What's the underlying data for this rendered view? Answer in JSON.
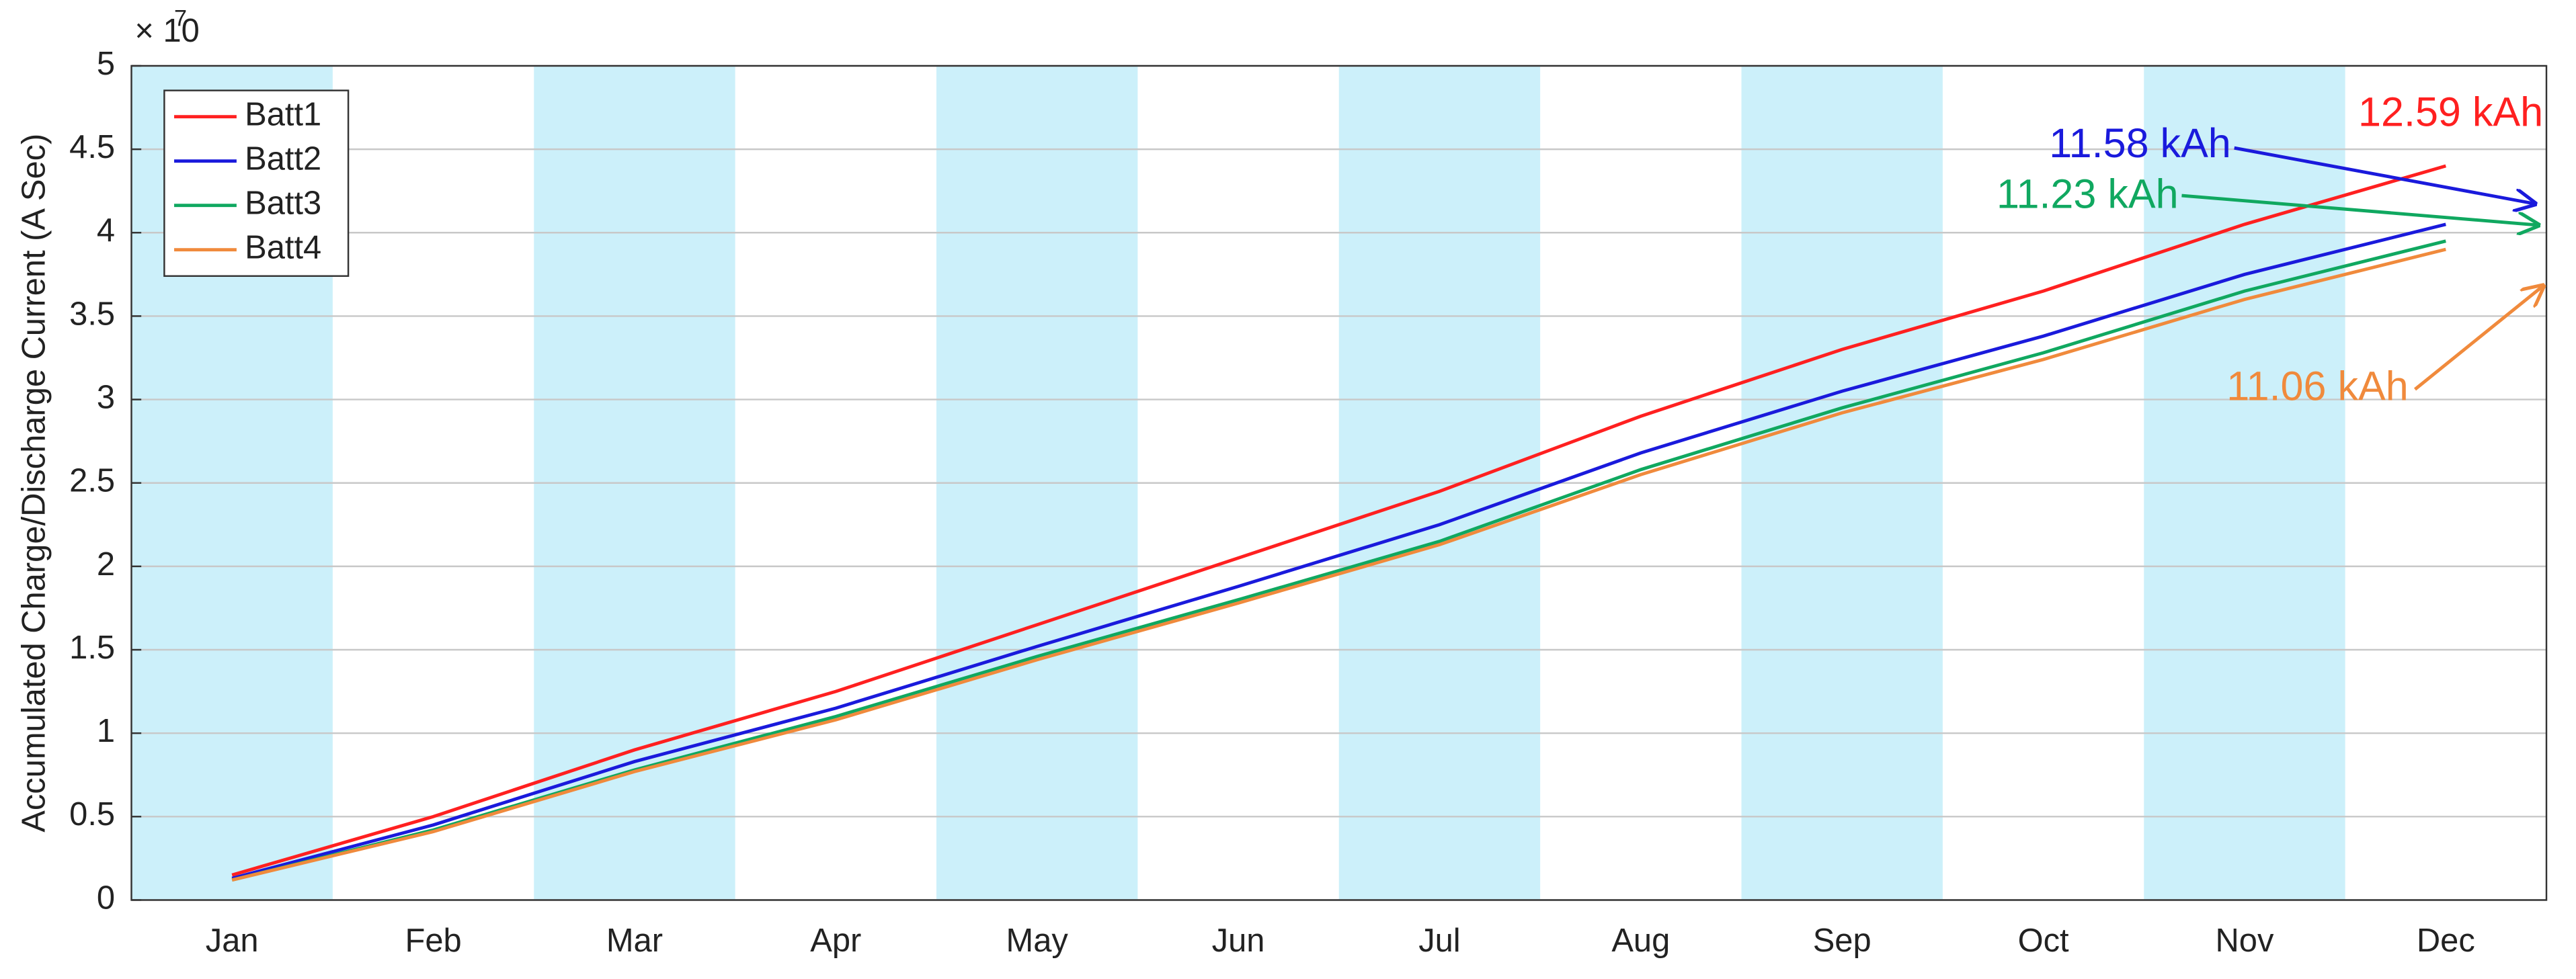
{
  "chart_data": {
    "type": "line",
    "y_label": "Accumulated Charge/Discharge Current (A Sec)",
    "y_scale_base": "× 10",
    "y_scale_exponent": "7",
    "categories": [
      "Jan",
      "Feb",
      "Mar",
      "Apr",
      "May",
      "Jun",
      "Jul",
      "Aug",
      "Sep",
      "Oct",
      "Nov",
      "Dec"
    ],
    "series": [
      {
        "name": "Batt1",
        "color": "#ff2020",
        "values": [
          0.15,
          0.5,
          0.9,
          1.25,
          1.65,
          2.05,
          2.45,
          2.9,
          3.3,
          3.65,
          4.05,
          4.4
        ]
      },
      {
        "name": "Batt2",
        "color": "#1a1adc",
        "values": [
          0.13,
          0.45,
          0.83,
          1.15,
          1.52,
          1.88,
          2.25,
          2.68,
          3.05,
          3.38,
          3.75,
          4.05
        ]
      },
      {
        "name": "Batt3",
        "color": "#10a860",
        "values": [
          0.12,
          0.42,
          0.78,
          1.1,
          1.46,
          1.8,
          2.15,
          2.58,
          2.95,
          3.28,
          3.65,
          3.95
        ]
      },
      {
        "name": "Batt4",
        "color": "#f08a3c",
        "values": [
          0.12,
          0.41,
          0.77,
          1.08,
          1.44,
          1.78,
          2.13,
          2.55,
          2.92,
          3.24,
          3.6,
          3.9
        ]
      }
    ],
    "ylim": [
      0,
      5
    ],
    "yticks": [
      0,
      0.5,
      1,
      1.5,
      2,
      2.5,
      3,
      3.5,
      4,
      4.5,
      5
    ],
    "grid": true,
    "legend": "upper-left",
    "shaded_months": [
      "Jan",
      "Mar",
      "May",
      "Jul",
      "Sep",
      "Nov"
    ],
    "shade_color": "#ccf0fa",
    "annotations": [
      {
        "text": "12.59 kAh",
        "color": "#ff2020"
      },
      {
        "text": "11.58 kAh",
        "color": "#1a1adc"
      },
      {
        "text": "11.23 kAh",
        "color": "#10a860"
      },
      {
        "text": "11.06 kAh",
        "color": "#f08a3c"
      }
    ]
  }
}
